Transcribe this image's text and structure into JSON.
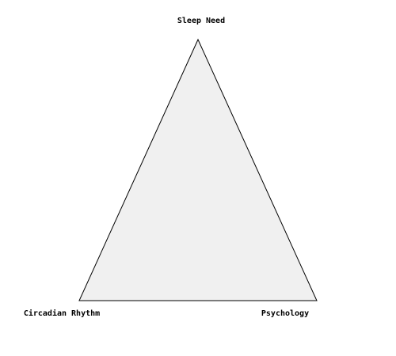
{
  "diagram": {
    "vertices": {
      "top": {
        "label": "Sleep Need"
      },
      "bottom_left": {
        "label": "Circadian Rhythm"
      },
      "bottom_right": {
        "label": "Psychology"
      }
    },
    "colors": {
      "triangle_fill": "#f0f0f0",
      "triangle_stroke": "#000000",
      "background": "#ffffff"
    }
  }
}
